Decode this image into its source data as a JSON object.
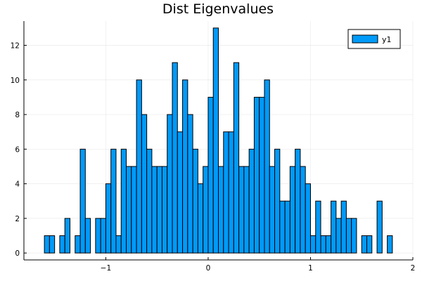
{
  "chart_data": {
    "type": "bar",
    "title": "Dist Eigenvalues",
    "xlabel": "",
    "ylabel": "",
    "xlim": [
      -1.8,
      2.0
    ],
    "ylim": [
      -0.4,
      13.4
    ],
    "xticks": [
      -1,
      0,
      1,
      2
    ],
    "xtick_labels": [
      "−1",
      "0",
      "1",
      "2"
    ],
    "yticks": [
      0,
      2,
      4,
      6,
      8,
      10,
      12
    ],
    "ytick_labels": [
      "0",
      "2",
      "4",
      "6",
      "8",
      "10",
      "12"
    ],
    "grid": true,
    "legend": {
      "placement": "top-right",
      "entries": [
        "y1"
      ]
    },
    "bar_color": "#009af9",
    "bin_width": 0.05,
    "series": [
      {
        "name": "y1",
        "bin_starts": [
          -1.6,
          -1.55,
          -1.5,
          -1.45,
          -1.4,
          -1.35,
          -1.3,
          -1.25,
          -1.2,
          -1.15,
          -1.1,
          -1.05,
          -1.0,
          -0.95,
          -0.9,
          -0.85,
          -0.8,
          -0.75,
          -0.7,
          -0.65,
          -0.6,
          -0.55,
          -0.5,
          -0.45,
          -0.4,
          -0.35,
          -0.3,
          -0.25,
          -0.2,
          -0.15,
          -0.1,
          -0.05,
          0.0,
          0.05,
          0.1,
          0.15,
          0.2,
          0.25,
          0.3,
          0.35,
          0.4,
          0.45,
          0.5,
          0.55,
          0.6,
          0.65,
          0.7,
          0.75,
          0.8,
          0.85,
          0.9,
          0.95,
          1.0,
          1.05,
          1.1,
          1.15,
          1.2,
          1.25,
          1.3,
          1.35,
          1.4,
          1.45,
          1.5,
          1.55,
          1.6,
          1.65,
          1.7,
          1.75
        ],
        "counts": [
          1,
          1,
          0,
          1,
          2,
          0,
          1,
          6,
          2,
          0,
          2,
          2,
          4,
          6,
          1,
          6,
          5,
          5,
          10,
          8,
          6,
          5,
          5,
          5,
          8,
          11,
          7,
          10,
          8,
          6,
          4,
          5,
          9,
          13,
          5,
          7,
          7,
          11,
          5,
          5,
          6,
          9,
          9,
          10,
          5,
          6,
          3,
          3,
          5,
          6,
          5,
          4,
          1,
          3,
          1,
          1,
          3,
          2,
          3,
          2,
          2,
          0,
          1,
          1,
          0,
          3,
          0,
          1
        ]
      }
    ]
  }
}
